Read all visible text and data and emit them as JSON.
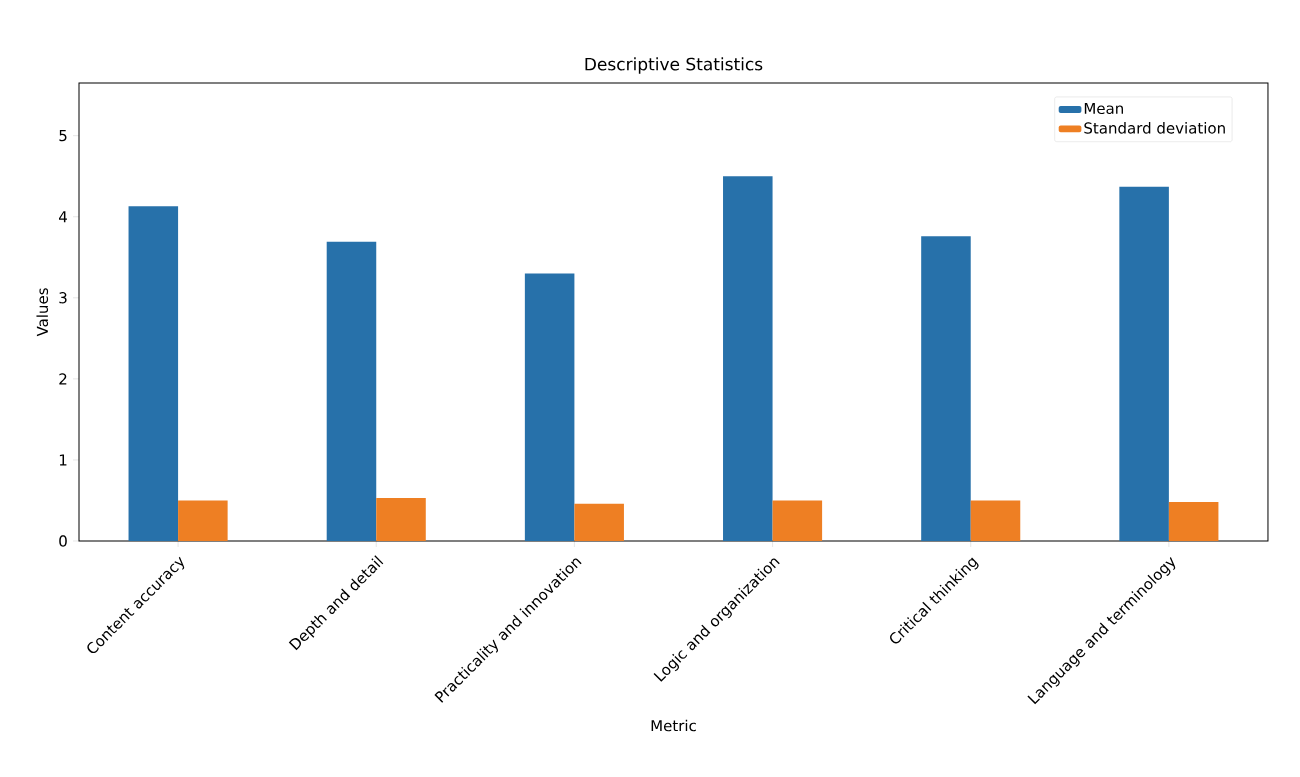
{
  "chart_data": {
    "type": "bar",
    "title": "Descriptive Statistics",
    "xlabel": "Metric",
    "ylabel": "Values",
    "categories": [
      "Content accuracy",
      "Depth and detail",
      "Practicality and innovation",
      "Logic and organization",
      "Critical thinking",
      "Language and terminology"
    ],
    "series": [
      {
        "name": "Mean",
        "color": "#2771aa",
        "values": [
          4.13,
          3.69,
          3.3,
          4.5,
          3.76,
          4.37
        ]
      },
      {
        "name": "Standard deviation",
        "color": "#ee7f23",
        "values": [
          0.5,
          0.53,
          0.46,
          0.5,
          0.5,
          0.48
        ]
      }
    ],
    "ylim": [
      0,
      5.65
    ],
    "yticks": [
      0,
      1,
      2,
      3,
      4,
      5
    ],
    "grid": false,
    "legend": "top right"
  }
}
